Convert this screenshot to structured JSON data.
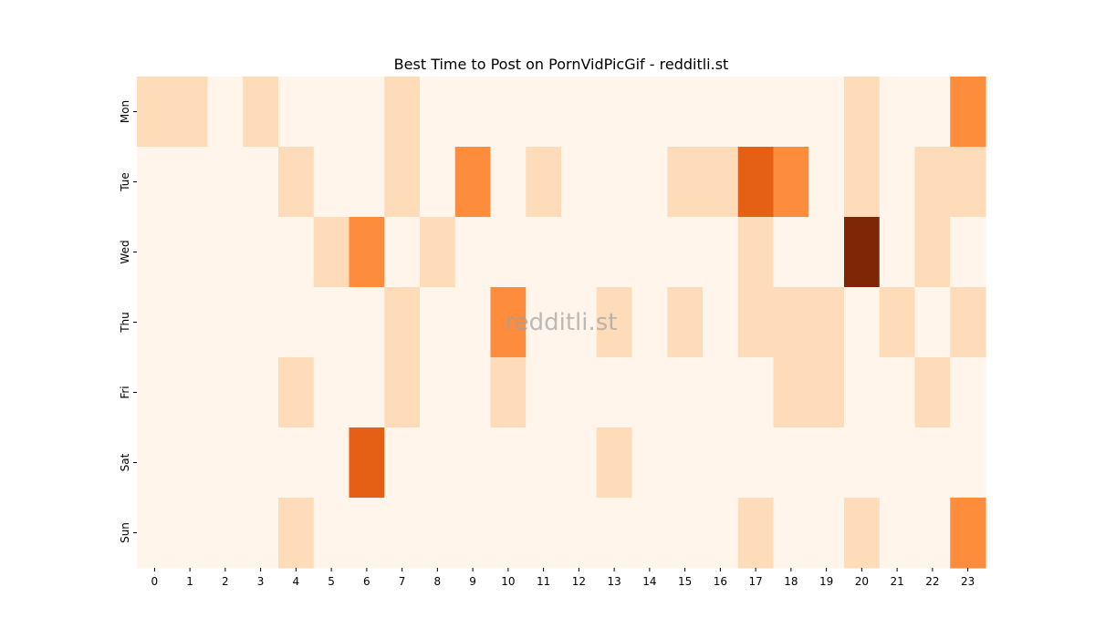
{
  "chart_data": {
    "type": "heatmap",
    "title": "Best Time to Post on PornVidPicGif - redditli.st",
    "watermark": "redditli.st",
    "x": [
      "0",
      "1",
      "2",
      "3",
      "4",
      "5",
      "6",
      "7",
      "8",
      "9",
      "10",
      "11",
      "12",
      "13",
      "14",
      "15",
      "16",
      "17",
      "18",
      "19",
      "20",
      "21",
      "22",
      "23"
    ],
    "y": [
      "Mon",
      "Tue",
      "Wed",
      "Thu",
      "Fri",
      "Sat",
      "Sun"
    ],
    "values": [
      [
        1,
        1,
        0,
        1,
        0,
        0,
        0,
        1,
        0,
        0,
        0,
        0,
        0,
        0,
        0,
        0,
        0,
        0,
        0,
        0,
        1,
        0,
        0,
        3
      ],
      [
        0,
        0,
        0,
        0,
        1,
        0,
        0,
        1,
        0,
        3,
        0,
        1,
        0,
        0,
        0,
        1,
        1,
        4,
        3,
        0,
        1,
        0,
        1,
        1
      ],
      [
        0,
        0,
        0,
        0,
        0,
        1,
        3,
        0,
        1,
        0,
        0,
        0,
        0,
        0,
        0,
        0,
        0,
        1,
        0,
        0,
        6,
        0,
        1,
        0
      ],
      [
        0,
        0,
        0,
        0,
        0,
        0,
        0,
        1,
        0,
        0,
        3,
        0,
        0,
        1,
        0,
        1,
        0,
        1,
        1,
        1,
        0,
        1,
        0,
        1
      ],
      [
        0,
        0,
        0,
        0,
        1,
        0,
        0,
        1,
        0,
        0,
        1,
        0,
        0,
        0,
        0,
        0,
        0,
        0,
        1,
        1,
        0,
        0,
        1,
        0
      ],
      [
        0,
        0,
        0,
        0,
        0,
        0,
        4,
        0,
        0,
        0,
        0,
        0,
        0,
        1,
        0,
        0,
        0,
        0,
        0,
        0,
        0,
        0,
        0,
        0
      ],
      [
        0,
        0,
        0,
        0,
        1,
        0,
        0,
        0,
        0,
        0,
        0,
        0,
        0,
        0,
        0,
        0,
        0,
        1,
        0,
        0,
        1,
        0,
        0,
        3
      ]
    ],
    "value_range": [
      0,
      6
    ],
    "colormap": "Oranges",
    "colors": [
      "#fff5eb",
      "#fdd0a2",
      "#fd8d3c",
      "#d94801",
      "#7f2704"
    ],
    "legend": "none",
    "grid": false
  }
}
